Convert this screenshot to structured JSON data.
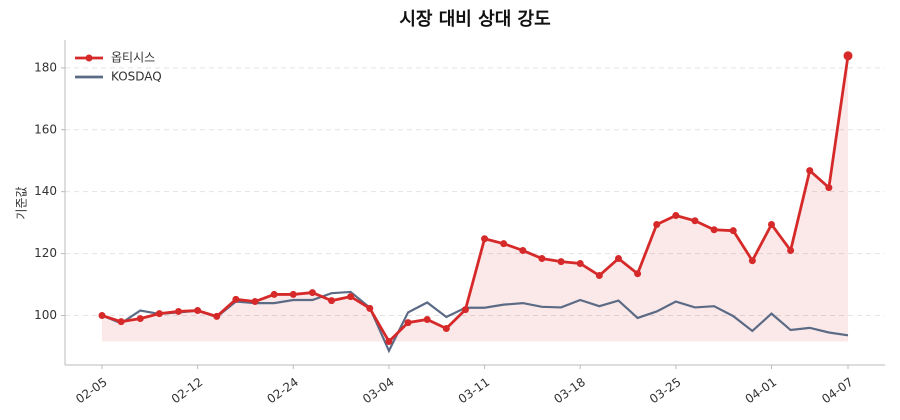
{
  "chart_data": {
    "type": "line",
    "title": "시장 대비 상대 강도",
    "ylabel": "기준값",
    "categories": [
      "02-05",
      null,
      null,
      null,
      null,
      "02-12",
      null,
      null,
      null,
      null,
      "02-24",
      null,
      null,
      null,
      null,
      "03-04",
      null,
      null,
      null,
      null,
      "03-11",
      null,
      null,
      null,
      null,
      "03-18",
      null,
      null,
      null,
      null,
      "03-25",
      null,
      null,
      null,
      null,
      "04-01",
      null,
      null,
      null,
      "04-07"
    ],
    "series": [
      {
        "name": "옵티시스",
        "color": "#d62a2a",
        "markers": true,
        "fill": true,
        "values": [
          100,
          98,
          99,
          100.6,
          101.3,
          101.6,
          99.7,
          105.2,
          104.5,
          106.8,
          106.8,
          107.4,
          104.8,
          106.1,
          102.3,
          91.6,
          97.7,
          98.7,
          95.8,
          101.9,
          124.8,
          123.2,
          121,
          118.4,
          117.4,
          116.8,
          112.9,
          118.4,
          113.5,
          129.4,
          132.3,
          130.6,
          127.7,
          127.4,
          117.7,
          129.4,
          121,
          146.8,
          141.3,
          183.9
        ]
      },
      {
        "name": "KOSDAQ",
        "color": "#5b6b85",
        "markers": false,
        "fill": false,
        "values": [
          100,
          97.5,
          101.6,
          100.5,
          101,
          101.5,
          99.5,
          104.5,
          104,
          104,
          105,
          105,
          107.2,
          107.6,
          102.5,
          88.6,
          101,
          104.2,
          99.5,
          102.5,
          102.5,
          103.5,
          104,
          102.8,
          102.6,
          105,
          103,
          104.8,
          99.2,
          101.3,
          104.5,
          102.6,
          103,
          99.8,
          95,
          100.6,
          95.3,
          96,
          94.5,
          93.6
        ]
      }
    ],
    "ylim": [
      84,
      189
    ],
    "yticks": [
      100,
      120,
      140,
      160,
      180
    ],
    "grid": true,
    "legend": "upper left"
  }
}
